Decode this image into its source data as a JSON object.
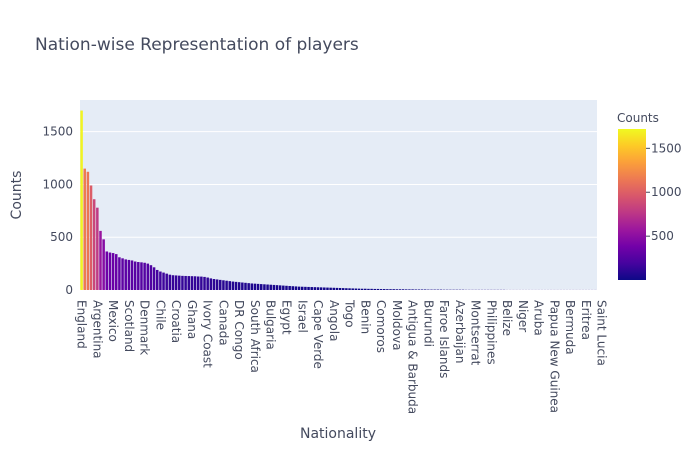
{
  "chart_data": {
    "type": "bar",
    "title": "Nation-wise Representation of players",
    "xlabel": "Nationality",
    "ylabel": "Counts",
    "ylim": [
      0,
      1800
    ],
    "yticks": [
      0,
      500,
      1000,
      1500
    ],
    "grid": true,
    "colorbar": {
      "title": "Counts",
      "ticks": [
        500,
        1000,
        1500
      ],
      "range": [
        1,
        1720
      ],
      "colorscale": "plasma"
    },
    "x_tick_labels": [
      "England",
      "Argentina",
      "Mexico",
      "Scotland",
      "Denmark",
      "Chile",
      "Croatia",
      "Ghana",
      "Ivory Coast",
      "Canada",
      "DR Congo",
      "South Africa",
      "Bulgaria",
      "Egypt",
      "Israel",
      "Cape Verde",
      "Angola",
      "Togo",
      "Benin",
      "Comoros",
      "Moldova",
      "Antigua & Barbuda",
      "Burundi",
      "Faroe Islands",
      "Azerbaijan",
      "Montserrat",
      "Philippines",
      "Belize",
      "Niger",
      "Aruba",
      "Papua New Guinea",
      "Bermuda",
      "Eritrea",
      "Saint Lucia"
    ],
    "values": [
      1700,
      1150,
      1120,
      990,
      860,
      780,
      560,
      480,
      365,
      355,
      350,
      340,
      310,
      300,
      290,
      285,
      280,
      270,
      265,
      262,
      258,
      250,
      235,
      215,
      190,
      175,
      165,
      155,
      145,
      140,
      138,
      136,
      134,
      133,
      132,
      131,
      130,
      128,
      127,
      124,
      118,
      110,
      104,
      100,
      96,
      92,
      88,
      84,
      80,
      77,
      74,
      71,
      68,
      65,
      62,
      60,
      58,
      56,
      54,
      52,
      50,
      48,
      46,
      44,
      42,
      40,
      38,
      36,
      34,
      32,
      31,
      30,
      29,
      28,
      27,
      26,
      25,
      24,
      23,
      22,
      21,
      20,
      19,
      18,
      17,
      16,
      15,
      14,
      13,
      12,
      12,
      11,
      11,
      10,
      10,
      9,
      9,
      8,
      8,
      8,
      7,
      7,
      7,
      6,
      6,
      6,
      5,
      5,
      5,
      5,
      4,
      4,
      4,
      4,
      4,
      3,
      3,
      3,
      3,
      3,
      3,
      3,
      2,
      2,
      2,
      2,
      2,
      2,
      2,
      2,
      2,
      2,
      2,
      2,
      2,
      1,
      1,
      1,
      1,
      1,
      1,
      1,
      1,
      1,
      1,
      1,
      1,
      1,
      1,
      1,
      1,
      1,
      1,
      1,
      1,
      1,
      1,
      1,
      1,
      1,
      1,
      1,
      1,
      1
    ]
  }
}
